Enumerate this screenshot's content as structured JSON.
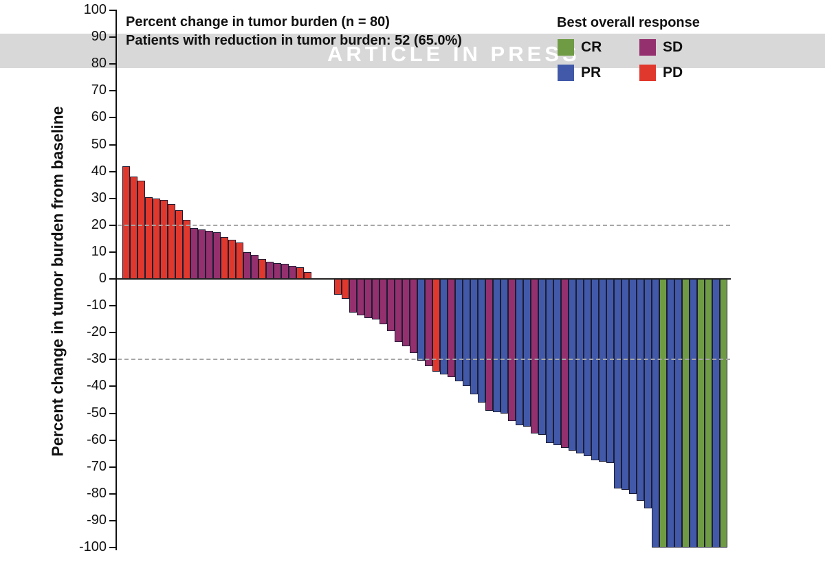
{
  "watermark": {
    "text": "ARTICLE IN PRESS",
    "band_color": "#d8d8d8"
  },
  "header": {
    "title_line1": "Percent change in tumor burden (n = 80)",
    "title_line2": "Patients with reduction in tumor burden: 52 (65.0%)"
  },
  "legend": {
    "title": "Best overall response",
    "items": [
      {
        "key": "CR",
        "label": "CR",
        "color": "#6f9b45"
      },
      {
        "key": "SD",
        "label": "SD",
        "color": "#94306e"
      },
      {
        "key": "PR",
        "label": "PR",
        "color": "#4159a8"
      },
      {
        "key": "PD",
        "label": "PD",
        "color": "#e0382c"
      }
    ]
  },
  "chart_data": {
    "type": "bar",
    "title": "Percent change in tumor burden (n = 80)",
    "subtitle": "Patients with reduction in tumor burden: 52 (65.0%)",
    "ylabel": "Percent change in tumor burden from baseline",
    "ylim": [
      -100,
      100
    ],
    "yticks": [
      100,
      90,
      80,
      70,
      60,
      50,
      40,
      30,
      20,
      10,
      0,
      -10,
      -20,
      -30,
      -40,
      -50,
      -60,
      -70,
      -80,
      -90,
      -100
    ],
    "reference_lines": [
      20,
      -30
    ],
    "grid": "dashed reference lines only",
    "legend_position": "top-right",
    "colors": {
      "CR": "#6f9b45",
      "PR": "#4159a8",
      "SD": "#94306e",
      "PD": "#e0382c"
    },
    "n_patients": 80,
    "n_with_reduction": 52,
    "pct_with_reduction": 65.0,
    "bars": [
      {
        "v": 42,
        "r": "PD"
      },
      {
        "v": 38,
        "r": "PD"
      },
      {
        "v": 36.5,
        "r": "PD"
      },
      {
        "v": 30.5,
        "r": "PD"
      },
      {
        "v": 30,
        "r": "PD"
      },
      {
        "v": 29.5,
        "r": "PD"
      },
      {
        "v": 28,
        "r": "PD"
      },
      {
        "v": 25.5,
        "r": "PD"
      },
      {
        "v": 22,
        "r": "PD"
      },
      {
        "v": 19,
        "r": "SD"
      },
      {
        "v": 18.5,
        "r": "SD"
      },
      {
        "v": 18,
        "r": "SD"
      },
      {
        "v": 17.5,
        "r": "SD"
      },
      {
        "v": 15.5,
        "r": "PD"
      },
      {
        "v": 14.5,
        "r": "PD"
      },
      {
        "v": 13.5,
        "r": "PD"
      },
      {
        "v": 10,
        "r": "SD"
      },
      {
        "v": 9,
        "r": "SD"
      },
      {
        "v": 7.5,
        "r": "PD"
      },
      {
        "v": 6.5,
        "r": "SD"
      },
      {
        "v": 6,
        "r": "SD"
      },
      {
        "v": 5.5,
        "r": "SD"
      },
      {
        "v": 4.8,
        "r": "SD"
      },
      {
        "v": 4.3,
        "r": "PD"
      },
      {
        "v": 2.6,
        "r": "PD"
      },
      {
        "v": 0,
        "r": "SD"
      },
      {
        "v": 0,
        "r": "SD"
      },
      {
        "v": 0,
        "r": "SD"
      },
      {
        "v": -6,
        "r": "PD"
      },
      {
        "v": -7.5,
        "r": "PD"
      },
      {
        "v": -12.5,
        "r": "SD"
      },
      {
        "v": -13.5,
        "r": "SD"
      },
      {
        "v": -14.5,
        "r": "SD"
      },
      {
        "v": -15,
        "r": "SD"
      },
      {
        "v": -17,
        "r": "SD"
      },
      {
        "v": -19.5,
        "r": "SD"
      },
      {
        "v": -23.5,
        "r": "SD"
      },
      {
        "v": -25,
        "r": "SD"
      },
      {
        "v": -27.5,
        "r": "SD"
      },
      {
        "v": -30.5,
        "r": "PR"
      },
      {
        "v": -32.5,
        "r": "SD"
      },
      {
        "v": -34.5,
        "r": "PD"
      },
      {
        "v": -35.5,
        "r": "PR"
      },
      {
        "v": -36.5,
        "r": "SD"
      },
      {
        "v": -38,
        "r": "PR"
      },
      {
        "v": -40,
        "r": "PR"
      },
      {
        "v": -43,
        "r": "PR"
      },
      {
        "v": -46,
        "r": "PR"
      },
      {
        "v": -49,
        "r": "SD"
      },
      {
        "v": -49.5,
        "r": "PR"
      },
      {
        "v": -50,
        "r": "PR"
      },
      {
        "v": -53,
        "r": "SD"
      },
      {
        "v": -54.5,
        "r": "PR"
      },
      {
        "v": -55,
        "r": "PR"
      },
      {
        "v": -57.5,
        "r": "SD"
      },
      {
        "v": -58,
        "r": "PR"
      },
      {
        "v": -61,
        "r": "PR"
      },
      {
        "v": -62,
        "r": "PR"
      },
      {
        "v": -63,
        "r": "SD"
      },
      {
        "v": -64,
        "r": "PR"
      },
      {
        "v": -65,
        "r": "PR"
      },
      {
        "v": -66,
        "r": "PR"
      },
      {
        "v": -67.5,
        "r": "PR"
      },
      {
        "v": -68,
        "r": "PR"
      },
      {
        "v": -68.5,
        "r": "PR"
      },
      {
        "v": -78,
        "r": "PR"
      },
      {
        "v": -78.5,
        "r": "PR"
      },
      {
        "v": -80,
        "r": "PR"
      },
      {
        "v": -82.5,
        "r": "PR"
      },
      {
        "v": -85.5,
        "r": "PR"
      },
      {
        "v": -100,
        "r": "PR"
      },
      {
        "v": -100,
        "r": "CR"
      },
      {
        "v": -100,
        "r": "PR"
      },
      {
        "v": -100,
        "r": "PR"
      },
      {
        "v": -100,
        "r": "CR"
      },
      {
        "v": -100,
        "r": "PR"
      },
      {
        "v": -100,
        "r": "CR"
      },
      {
        "v": -100,
        "r": "CR"
      },
      {
        "v": -100,
        "r": "PR"
      },
      {
        "v": -100,
        "r": "CR"
      }
    ]
  }
}
